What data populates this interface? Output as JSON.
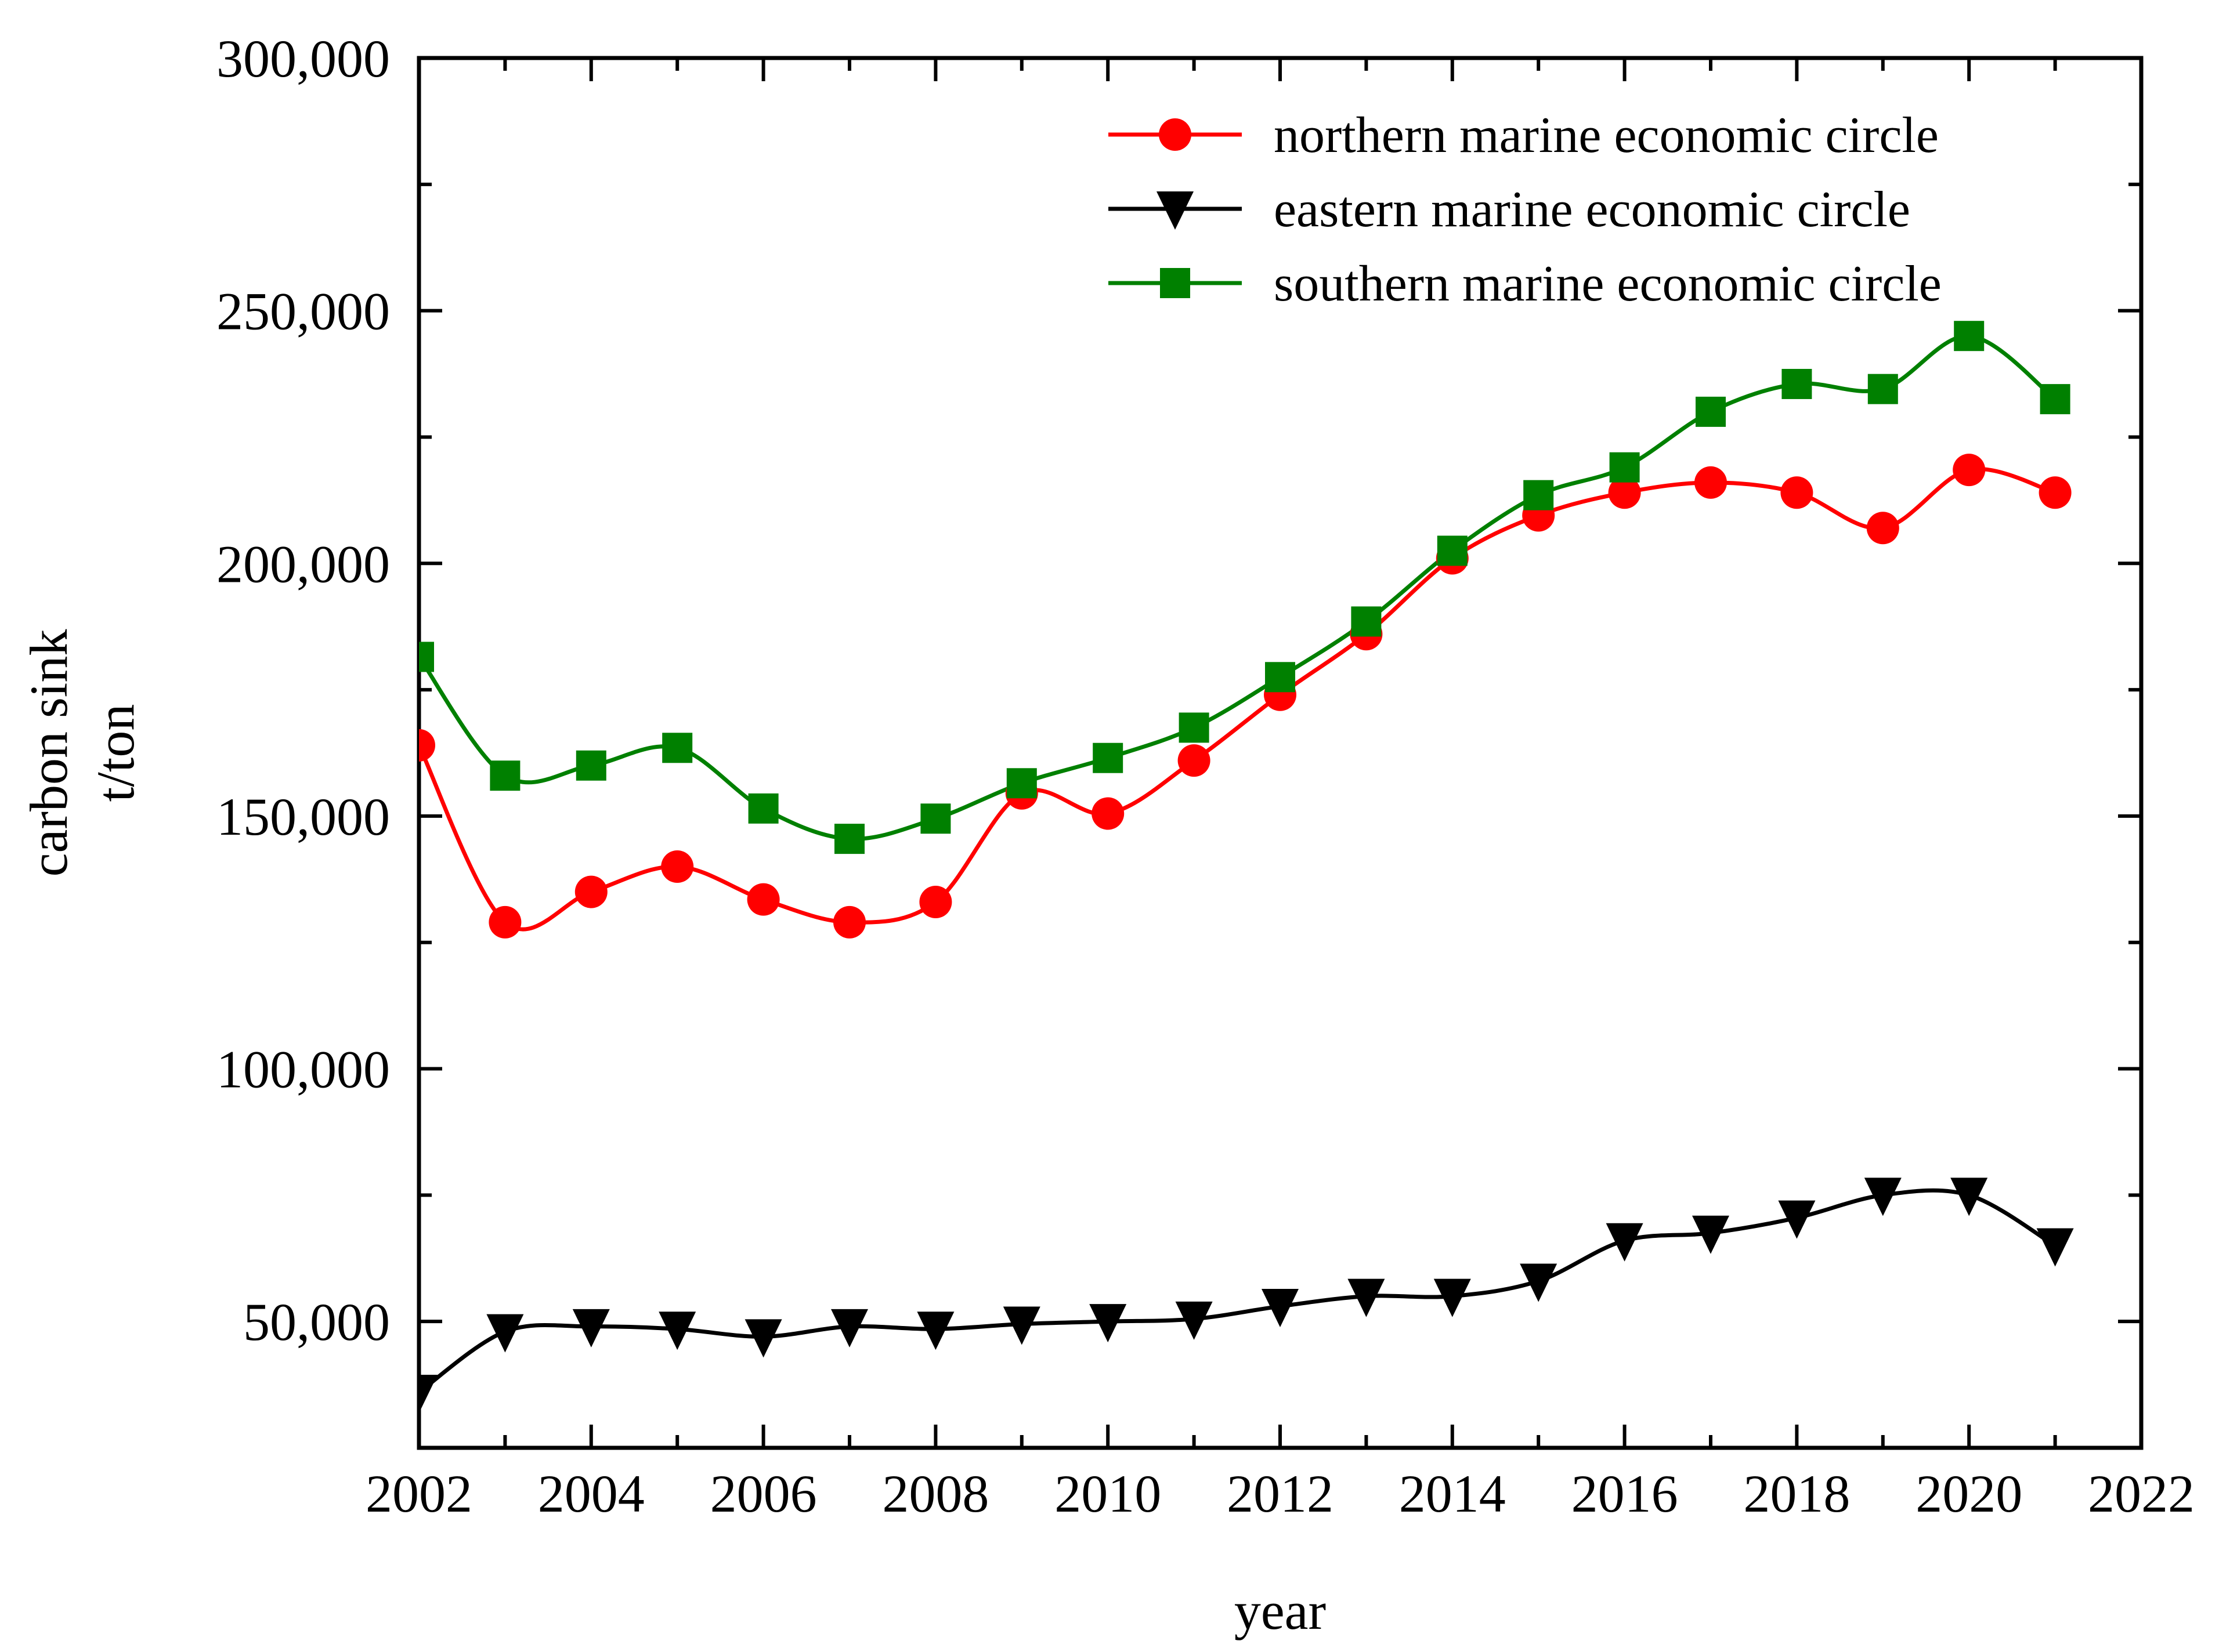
{
  "chart_data": {
    "type": "line",
    "title": "",
    "xlabel": "year",
    "ylabel": [
      "carbon sink",
      "t/ton"
    ],
    "xlim": [
      2002,
      2022
    ],
    "ylim": [
      25000,
      300000
    ],
    "x_ticks": [
      2002,
      2004,
      2006,
      2008,
      2010,
      2012,
      2014,
      2016,
      2018,
      2020,
      2022
    ],
    "x_tick_labels": [
      "2002",
      "2004",
      "2006",
      "2008",
      "2010",
      "2012",
      "2014",
      "2016",
      "2018",
      "2020",
      "2022"
    ],
    "y_ticks": [
      50000,
      100000,
      150000,
      200000,
      250000,
      300000
    ],
    "y_tick_labels": [
      "50,000",
      "100,000",
      "150,000",
      "200,000",
      "250,000",
      "300,000"
    ],
    "legend_position": "top-right",
    "x": [
      2002,
      2003,
      2004,
      2005,
      2006,
      2007,
      2008,
      2009,
      2010,
      2011,
      2012,
      2013,
      2014,
      2015,
      2016,
      2017,
      2018,
      2019,
      2020,
      2021
    ],
    "series": [
      {
        "name": "northern marine economic circle",
        "color": "#ff0000",
        "marker": "circle",
        "values": [
          164000,
          129000,
          135000,
          140000,
          133500,
          129000,
          133000,
          154500,
          150500,
          161000,
          174000,
          186000,
          201000,
          209500,
          214000,
          216000,
          214000,
          207000,
          218500,
          214000
        ]
      },
      {
        "name": "eastern marine economic circle",
        "color": "#000000",
        "marker": "triangle-down",
        "values": [
          36000,
          48000,
          49000,
          48500,
          47000,
          49000,
          48500,
          49500,
          50000,
          50500,
          53000,
          55000,
          55000,
          58000,
          66000,
          67500,
          70500,
          75000,
          75000,
          65000
        ]
      },
      {
        "name": "southern marine economic circle",
        "color": "#008000",
        "marker": "square",
        "values": [
          181500,
          158000,
          160000,
          163500,
          151500,
          145500,
          149500,
          156500,
          161500,
          167500,
          177500,
          188500,
          202500,
          213500,
          219000,
          230000,
          235500,
          234500,
          245000,
          232500
        ]
      }
    ]
  }
}
